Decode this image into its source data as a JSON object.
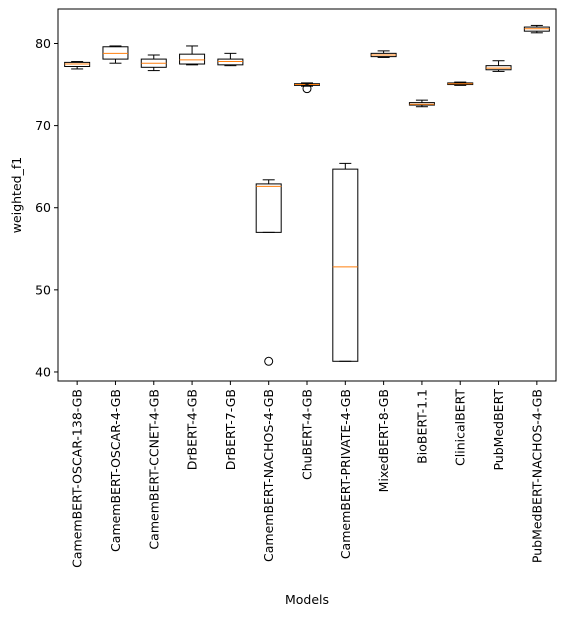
{
  "chart_data": {
    "type": "box",
    "xlabel": "Models",
    "ylabel": "weighted_f1",
    "ylim": [
      38.9,
      84.2
    ],
    "yticks": [
      40,
      50,
      60,
      70,
      80
    ],
    "grid": false,
    "colors": {
      "box": "#000000",
      "median": "#ff7f0e",
      "background": "#ffffff"
    },
    "categories": [
      "CamemBERT-OSCAR-138-GB",
      "CamemBERT-OSCAR-4-GB",
      "CamemBERT-CCNET-4-GB",
      "DrBERT-4-GB",
      "DrBERT-7-GB",
      "CamemBERT-NACHOS-4-GB",
      "ChuBERT-4-GB",
      "CamemBERT-PRIVATE-4-GB",
      "MixedBERT-8-GB",
      "BioBERT-1.1",
      "ClinicalBERT",
      "PubMedBERT",
      "PubMedBERT-NACHOS-4-GB"
    ],
    "boxes": [
      {
        "whisker_low": 76.9,
        "q1": 77.2,
        "median": 77.5,
        "q3": 77.7,
        "whisker_high": 77.8,
        "outliers": []
      },
      {
        "whisker_low": 77.6,
        "q1": 78.1,
        "median": 78.8,
        "q3": 79.6,
        "whisker_high": 79.7,
        "outliers": []
      },
      {
        "whisker_low": 76.7,
        "q1": 77.1,
        "median": 77.6,
        "q3": 78.1,
        "whisker_high": 78.6,
        "outliers": []
      },
      {
        "whisker_low": 77.4,
        "q1": 77.5,
        "median": 78.0,
        "q3": 78.7,
        "whisker_high": 79.7,
        "outliers": []
      },
      {
        "whisker_low": 77.3,
        "q1": 77.4,
        "median": 77.8,
        "q3": 78.1,
        "whisker_high": 78.8,
        "outliers": []
      },
      {
        "whisker_low": 57.0,
        "q1": 57.0,
        "median": 62.6,
        "q3": 62.9,
        "whisker_high": 63.4,
        "outliers": [
          41.3
        ]
      },
      {
        "whisker_low": 74.8,
        "q1": 74.9,
        "median": 75.0,
        "q3": 75.1,
        "whisker_high": 75.2,
        "outliers": [
          74.5
        ]
      },
      {
        "whisker_low": 41.3,
        "q1": 41.3,
        "median": 52.8,
        "q3": 64.7,
        "whisker_high": 65.4,
        "outliers": []
      },
      {
        "whisker_low": 78.3,
        "q1": 78.4,
        "median": 78.6,
        "q3": 78.8,
        "whisker_high": 79.1,
        "outliers": []
      },
      {
        "whisker_low": 72.3,
        "q1": 72.5,
        "median": 72.6,
        "q3": 72.8,
        "whisker_high": 73.1,
        "outliers": []
      },
      {
        "whisker_low": 74.9,
        "q1": 75.0,
        "median": 75.1,
        "q3": 75.2,
        "whisker_high": 75.3,
        "outliers": []
      },
      {
        "whisker_low": 76.6,
        "q1": 76.8,
        "median": 77.0,
        "q3": 77.3,
        "whisker_high": 77.9,
        "outliers": []
      },
      {
        "whisker_low": 81.3,
        "q1": 81.5,
        "median": 81.8,
        "q3": 82.0,
        "whisker_high": 82.2,
        "outliers": []
      }
    ]
  }
}
